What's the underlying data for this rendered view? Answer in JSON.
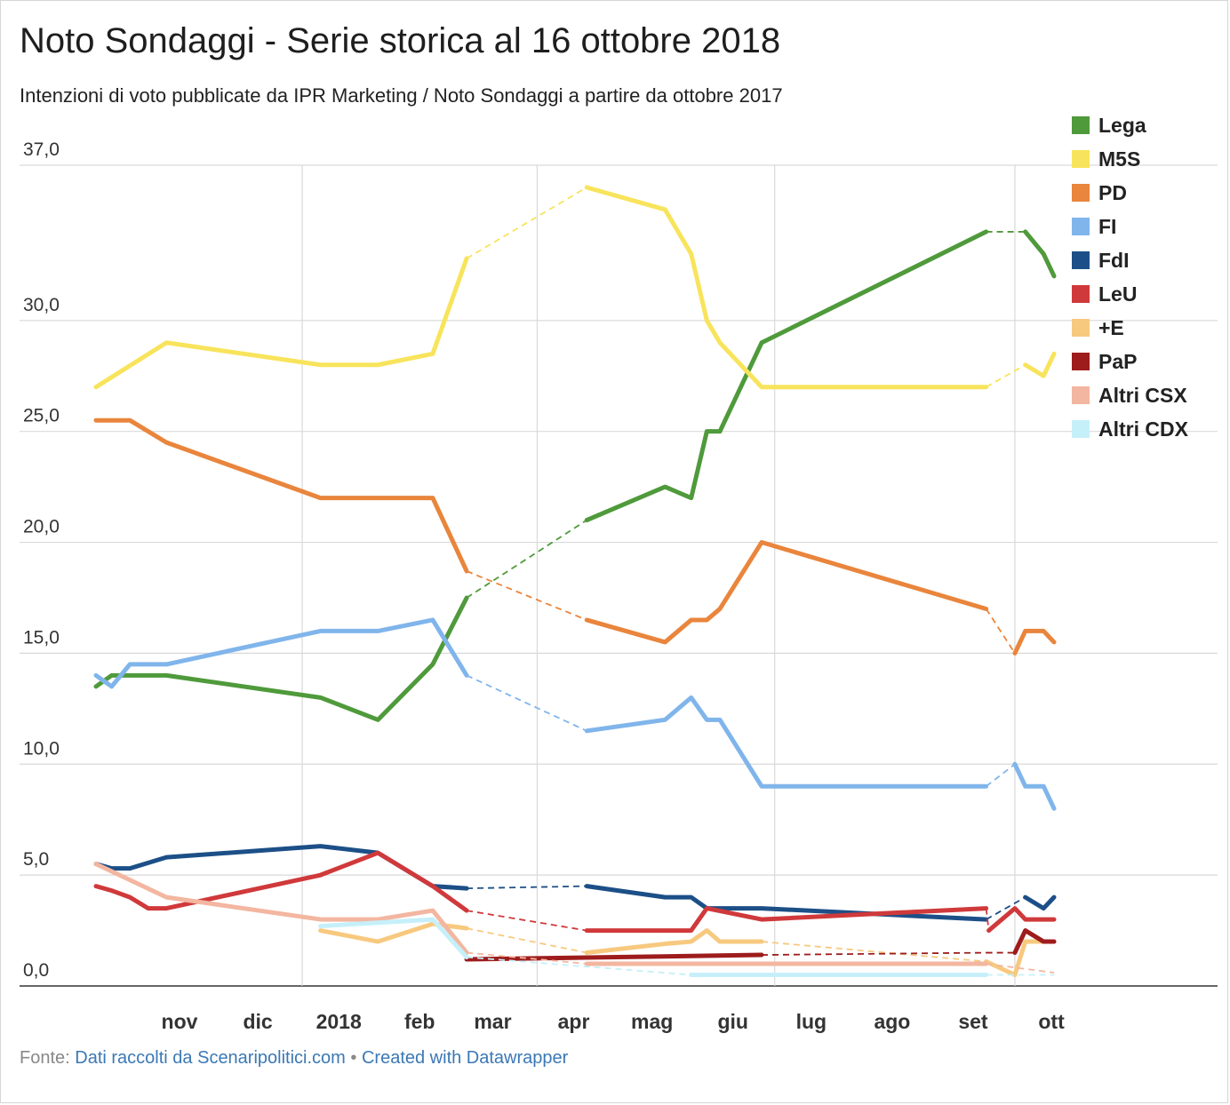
{
  "title": "Noto Sondaggi - Serie storica al 16 ottobre 2018",
  "subtitle": "Intenzioni di voto pubblicate da IPR Marketing / Noto Sondaggi a partire da ottobre 2017",
  "footer": {
    "source_label": "Fonte:",
    "source_link": "Dati raccolti da Scenaripolitici.com",
    "separator": "•",
    "credit_link": "Created with Datawrapper"
  },
  "chart_data": {
    "type": "line",
    "title": "Noto Sondaggi - Serie storica al 16 ottobre 2018",
    "xlabel": "",
    "ylabel": "",
    "xlim": [
      "2017-10-14",
      "2018-10-16"
    ],
    "ylim": [
      0,
      37
    ],
    "yticks": [
      {
        "value": 0,
        "label": "0,0"
      },
      {
        "value": 5,
        "label": "5,0"
      },
      {
        "value": 10,
        "label": "10,0"
      },
      {
        "value": 15,
        "label": "15,0"
      },
      {
        "value": 20,
        "label": "20,0"
      },
      {
        "value": 25,
        "label": "25,0"
      },
      {
        "value": 30,
        "label": "30,0"
      },
      {
        "value": 37,
        "label": "37,0"
      }
    ],
    "xticks": [
      {
        "date": "2017-11-15",
        "label": "nov"
      },
      {
        "date": "2017-12-15",
        "label": "dic"
      },
      {
        "date": "2018-01-15",
        "label": "2018"
      },
      {
        "date": "2018-02-15",
        "label": "feb"
      },
      {
        "date": "2018-03-15",
        "label": "mar"
      },
      {
        "date": "2018-04-15",
        "label": "apr"
      },
      {
        "date": "2018-05-15",
        "label": "mag"
      },
      {
        "date": "2018-06-15",
        "label": "giu"
      },
      {
        "date": "2018-07-15",
        "label": "lug"
      },
      {
        "date": "2018-08-15",
        "label": "ago"
      },
      {
        "date": "2018-09-15",
        "label": "set"
      },
      {
        "date": "2018-10-15",
        "label": "ott"
      }
    ],
    "vgrid": [
      "2018-01-01",
      "2018-04-01",
      "2018-07-01",
      "2018-10-01"
    ],
    "grid": true,
    "legend_position": "right",
    "series": [
      {
        "name": "Lega",
        "color": "#4f9a3b",
        "x": [
          "2017-10-14",
          "2017-10-20",
          "2017-11-10",
          "2018-01-08",
          "2018-01-30",
          "2018-02-20",
          "2018-03-05",
          "2018-04-20",
          "2018-05-20",
          "2018-05-30",
          "2018-06-05",
          "2018-06-10",
          "2018-06-26",
          "2018-09-20",
          "2018-10-05",
          "2018-10-12",
          "2018-10-16"
        ],
        "y": [
          13.5,
          14,
          14,
          13,
          12,
          14.5,
          17.5,
          21,
          22.5,
          22,
          25,
          25,
          29,
          34,
          34,
          33,
          32
        ],
        "gaps": [
          6,
          13
        ]
      },
      {
        "name": "M5S",
        "color": "#f8e45c",
        "x": [
          "2017-10-14",
          "2017-11-10",
          "2018-01-08",
          "2018-01-30",
          "2018-02-20",
          "2018-03-05",
          "2018-04-20",
          "2018-05-20",
          "2018-05-30",
          "2018-06-05",
          "2018-06-10",
          "2018-06-26",
          "2018-09-20",
          "2018-10-05",
          "2018-10-12",
          "2018-10-16"
        ],
        "y": [
          27,
          29,
          28,
          28,
          28.5,
          32.8,
          36,
          35,
          33,
          30,
          29,
          27,
          27,
          28,
          27.5,
          28.5
        ],
        "gaps": [
          5,
          12
        ]
      },
      {
        "name": "PD",
        "color": "#e9853c",
        "x": [
          "2017-10-14",
          "2017-10-27",
          "2017-11-10",
          "2018-01-08",
          "2018-01-30",
          "2018-02-20",
          "2018-03-05",
          "2018-04-20",
          "2018-05-20",
          "2018-05-30",
          "2018-06-05",
          "2018-06-10",
          "2018-06-26",
          "2018-09-20",
          "2018-10-01",
          "2018-10-05",
          "2018-10-12",
          "2018-10-16"
        ],
        "y": [
          25.5,
          25.5,
          24.5,
          22,
          22,
          22,
          18.7,
          16.5,
          15.5,
          16.5,
          16.5,
          17,
          20,
          17,
          15,
          16,
          16,
          15.5
        ],
        "gaps": [
          6,
          13
        ]
      },
      {
        "name": "FI",
        "color": "#80b5eb",
        "x": [
          "2017-10-14",
          "2017-10-20",
          "2017-10-27",
          "2017-11-10",
          "2018-01-08",
          "2018-01-30",
          "2018-02-20",
          "2018-03-05",
          "2018-04-20",
          "2018-05-20",
          "2018-05-30",
          "2018-06-05",
          "2018-06-10",
          "2018-06-26",
          "2018-09-20",
          "2018-10-01",
          "2018-10-05",
          "2018-10-12",
          "2018-10-16"
        ],
        "y": [
          14,
          13.5,
          14.5,
          14.5,
          16,
          16,
          16.5,
          14,
          11.5,
          12,
          13,
          12,
          12,
          9,
          9,
          10,
          9,
          9,
          8
        ],
        "gaps": [
          7,
          14
        ]
      },
      {
        "name": "FdI",
        "color": "#1c4f87",
        "x": [
          "2017-10-14",
          "2017-10-20",
          "2017-10-27",
          "2017-11-10",
          "2018-01-08",
          "2018-01-30",
          "2018-02-20",
          "2018-03-05",
          "2018-04-20",
          "2018-05-20",
          "2018-05-30",
          "2018-06-05",
          "2018-06-10",
          "2018-06-26",
          "2018-09-20",
          "2018-10-05",
          "2018-10-12",
          "2018-10-16"
        ],
        "y": [
          5.5,
          5.3,
          5.3,
          5.8,
          6.3,
          6,
          4.5,
          4.4,
          4.5,
          4,
          4,
          3.5,
          3.5,
          3.5,
          3,
          4,
          3.5,
          4
        ],
        "gaps": [
          7,
          14
        ]
      },
      {
        "name": "LeU",
        "color": "#d0393b",
        "x": [
          "2017-10-14",
          "2017-10-20",
          "2017-10-27",
          "2017-11-03",
          "2017-11-10",
          "2018-01-08",
          "2018-01-30",
          "2018-02-20",
          "2018-03-05",
          "2018-04-20",
          "2018-05-20",
          "2018-05-30",
          "2018-06-05",
          "2018-06-26",
          "2018-09-20",
          "2018-09-21",
          "2018-10-01",
          "2018-10-05",
          "2018-10-12",
          "2018-10-16"
        ],
        "y": [
          4.5,
          4.3,
          4,
          3.5,
          3.5,
          5,
          6,
          4.5,
          3.4,
          2.5,
          2.5,
          2.5,
          3.5,
          3,
          3.5,
          2.5,
          3.5,
          3,
          3,
          3
        ],
        "gaps": [
          8,
          14
        ]
      },
      {
        "name": "+E",
        "color": "#f7c97f",
        "x": [
          "2018-01-08",
          "2018-01-30",
          "2018-02-20",
          "2018-03-05",
          "2018-04-20",
          "2018-05-20",
          "2018-05-30",
          "2018-06-05",
          "2018-06-10",
          "2018-06-26",
          "2018-09-20",
          "2018-10-01",
          "2018-10-05",
          "2018-10-12",
          "2018-10-16"
        ],
        "y": [
          2.5,
          2,
          2.8,
          2.6,
          1.5,
          1.9,
          2,
          2.5,
          2,
          2,
          1.1,
          0.5,
          2,
          2,
          2
        ],
        "gaps": [
          3,
          9
        ]
      },
      {
        "name": "PaP",
        "color": "#9e1c1c",
        "x": [
          "2018-03-05",
          "2018-06-26",
          "2018-09-20",
          "2018-10-01",
          "2018-10-05",
          "2018-10-12",
          "2018-10-16"
        ],
        "y": [
          1.2,
          1.4,
          1.5,
          1.5,
          2.5,
          2,
          2
        ],
        "gaps": [
          1,
          2
        ]
      },
      {
        "name": "Altri CSX",
        "color": "#f3b6a0",
        "x": [
          "2017-10-14",
          "2017-11-10",
          "2018-01-08",
          "2018-01-30",
          "2018-02-20",
          "2018-03-05",
          "2018-04-20",
          "2018-05-20",
          "2018-05-30",
          "2018-06-26",
          "2018-09-20",
          "2018-10-16"
        ],
        "y": [
          5.5,
          4,
          3,
          3,
          3.4,
          1.5,
          1,
          1,
          1,
          1,
          1,
          0.6
        ],
        "gaps": [
          5,
          10
        ]
      },
      {
        "name": "Altri CDX",
        "color": "#c6f0f9",
        "x": [
          "2018-01-08",
          "2018-02-20",
          "2018-03-05",
          "2018-05-30",
          "2018-06-26",
          "2018-09-20",
          "2018-10-16"
        ],
        "y": [
          2.7,
          3,
          1.3,
          0.5,
          0.5,
          0.5,
          0.5
        ],
        "gaps": [
          2,
          5
        ]
      }
    ]
  }
}
